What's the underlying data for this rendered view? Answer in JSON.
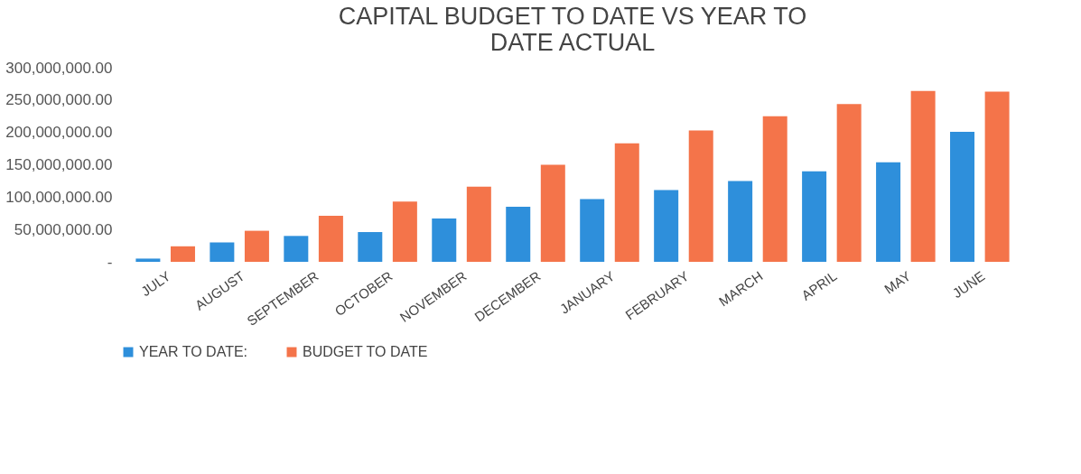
{
  "chart_data": {
    "type": "bar",
    "title": "CAPITAL BUDGET TO DATE VS YEAR TO DATE ACTUAL",
    "categories": [
      "JULY",
      "AUGUST",
      "SEPTEMBER",
      "OCTOBER",
      "NOVEMBER",
      "DECEMBER",
      "JANUARY",
      "FEBRUARY",
      "MARCH",
      "APRIL",
      "MAY",
      "JUNE"
    ],
    "series": [
      {
        "name": "YEAR TO DATE:",
        "color": "#2e8fdb",
        "values": [
          5000000,
          30000000,
          40000000,
          46000000,
          67000000,
          85000000,
          97000000,
          111000000,
          125000000,
          140000000,
          154000000,
          201000000
        ]
      },
      {
        "name": "BUDGET TO DATE",
        "color": "#f4744a",
        "values": [
          24000000,
          48000000,
          71000000,
          93000000,
          116000000,
          150000000,
          183000000,
          203000000,
          225000000,
          244000000,
          264000000,
          263000000
        ]
      }
    ],
    "ylim": [
      0,
      300000000
    ],
    "yticks": [
      {
        "value": 0,
        "label": "-"
      },
      {
        "value": 50000000,
        "label": "50,000,000.00"
      },
      {
        "value": 100000000,
        "label": "100,000,000.00"
      },
      {
        "value": 150000000,
        "label": "150,000,000.00"
      },
      {
        "value": 200000000,
        "label": "200,000,000.00"
      },
      {
        "value": 250000000,
        "label": "250,000,000.00"
      },
      {
        "value": 300000000,
        "label": "300,000,000.00"
      }
    ],
    "grid": false,
    "legend": "bottom"
  }
}
